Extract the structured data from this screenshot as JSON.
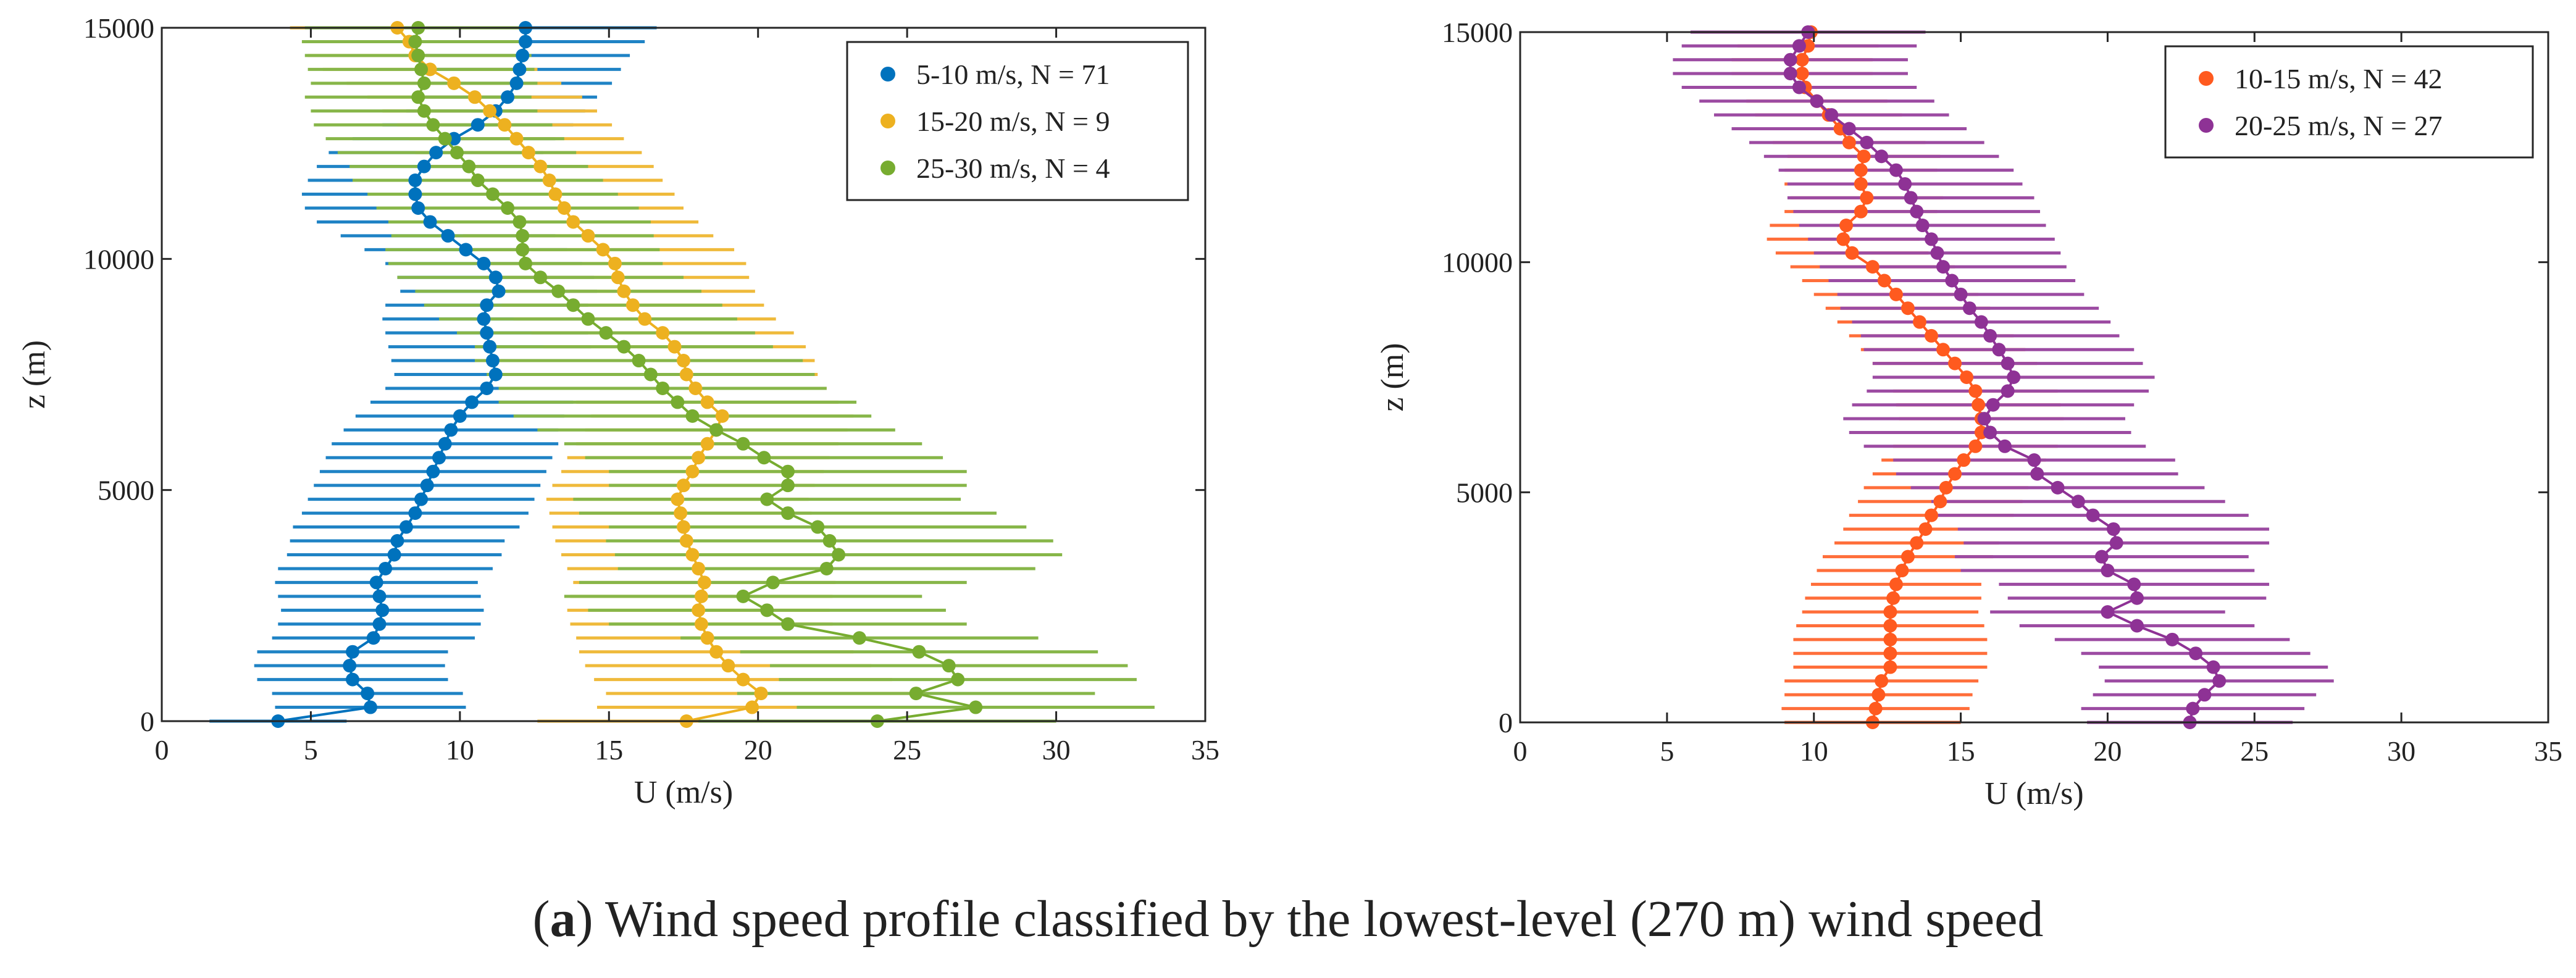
{
  "caption": {
    "prefix": "(",
    "letter": "a",
    "text": ") Wind speed profile classified by the lowest-level (270 m) wind speed"
  },
  "chart_data": [
    {
      "type": "scatter",
      "title": "",
      "xlabel": "U (m/s)",
      "ylabel": "z (m)",
      "xlim": [
        0,
        35
      ],
      "ylim": [
        0,
        15000
      ],
      "xticks": [
        0,
        5,
        10,
        15,
        20,
        25,
        30,
        35
      ],
      "yticks": [
        0,
        5000,
        10000,
        15000
      ],
      "legend_position": "top-right",
      "series": [
        {
          "name": "5-10 m/s, N = 71",
          "color": "#0072BD",
          "z": [
            0,
            300,
            600,
            900,
            1200,
            1500,
            1800,
            2100,
            2400,
            2700,
            3000,
            3300,
            3600,
            3900,
            4200,
            4500,
            4800,
            5100,
            5400,
            5700,
            6000,
            6300,
            6600,
            6900,
            7200,
            7500,
            7800,
            8100,
            8400,
            8700,
            9000,
            9300,
            9600,
            9900,
            10200,
            10500,
            10800,
            11100,
            11400,
            11700,
            12000,
            12300,
            12600,
            12900,
            13200,
            13500,
            13800,
            14100,
            14400,
            14700,
            15000
          ],
          "u": [
            3.9,
            7.0,
            6.9,
            6.4,
            6.3,
            6.4,
            7.1,
            7.3,
            7.4,
            7.3,
            7.2,
            7.5,
            7.8,
            7.9,
            8.2,
            8.5,
            8.7,
            8.9,
            9.1,
            9.3,
            9.5,
            9.7,
            10.0,
            10.4,
            10.9,
            11.2,
            11.1,
            11.0,
            10.9,
            10.8,
            10.9,
            11.3,
            11.2,
            10.8,
            10.2,
            9.6,
            9.0,
            8.6,
            8.5,
            8.5,
            8.8,
            9.2,
            9.8,
            10.6,
            11.2,
            11.6,
            11.9,
            12.0,
            12.1,
            12.2,
            12.2
          ],
          "spread": [
            2.3,
            3.2,
            3.2,
            3.2,
            3.2,
            3.2,
            3.4,
            3.4,
            3.4,
            3.4,
            3.4,
            3.6,
            3.6,
            3.6,
            3.8,
            3.8,
            3.8,
            3.8,
            3.8,
            3.8,
            3.8,
            3.6,
            3.5,
            3.4,
            3.4,
            3.4,
            3.4,
            3.4,
            3.4,
            3.4,
            3.4,
            3.3,
            3.3,
            3.3,
            3.4,
            3.6,
            3.8,
            3.8,
            3.8,
            3.6,
            3.6,
            3.6,
            3.4,
            3.2,
            3.0,
            3.0,
            3.2,
            3.4,
            3.6,
            4.0,
            4.4
          ]
        },
        {
          "name": "15-20 m/s, N = 9",
          "color": "#EDB120",
          "z": [
            0,
            300,
            600,
            900,
            1200,
            1500,
            1800,
            2100,
            2400,
            2700,
            3000,
            3300,
            3600,
            3900,
            4200,
            4500,
            4800,
            5100,
            5400,
            5700,
            6000,
            6300,
            6600,
            6900,
            7200,
            7500,
            7800,
            8100,
            8400,
            8700,
            9000,
            9300,
            9600,
            9900,
            10200,
            10500,
            10800,
            11100,
            11400,
            11700,
            12000,
            12300,
            12600,
            12900,
            13200,
            13500,
            13800,
            14100,
            14400,
            14700,
            15000
          ],
          "u": [
            17.6,
            19.8,
            20.1,
            19.5,
            19.0,
            18.6,
            18.3,
            18.1,
            18.0,
            18.1,
            18.2,
            18.0,
            17.8,
            17.6,
            17.5,
            17.4,
            17.3,
            17.5,
            17.8,
            18.0,
            18.3,
            18.6,
            18.8,
            18.3,
            17.9,
            17.6,
            17.5,
            17.2,
            16.8,
            16.2,
            15.8,
            15.5,
            15.3,
            15.2,
            14.8,
            14.3,
            13.8,
            13.5,
            13.2,
            13.0,
            12.7,
            12.3,
            11.9,
            11.5,
            11.0,
            10.5,
            9.8,
            9.0,
            8.5,
            8.3,
            7.9
          ],
          "spread": [
            5.0,
            5.2,
            5.2,
            5.0,
            4.8,
            4.6,
            4.4,
            4.4,
            4.4,
            4.4,
            4.4,
            4.4,
            4.4,
            4.4,
            4.4,
            4.4,
            4.4,
            4.4,
            4.4,
            4.4,
            4.4,
            4.4,
            4.4,
            4.4,
            4.4,
            4.4,
            4.4,
            4.4,
            4.4,
            4.4,
            4.4,
            4.4,
            4.4,
            4.4,
            4.4,
            4.2,
            4.2,
            4.0,
            4.0,
            3.8,
            3.8,
            3.8,
            3.6,
            3.6,
            3.6,
            3.6,
            3.6,
            3.6,
            3.6,
            3.6,
            3.6
          ]
        },
        {
          "name": "25-30 m/s, N = 4",
          "color": "#77AC30",
          "z": [
            0,
            300,
            600,
            900,
            1200,
            1500,
            1800,
            2100,
            2400,
            2700,
            3000,
            3300,
            3600,
            3900,
            4200,
            4500,
            4800,
            5100,
            5400,
            5700,
            6000,
            6300,
            6600,
            6900,
            7200,
            7500,
            7800,
            8100,
            8400,
            8700,
            9000,
            9300,
            9600,
            9900,
            10200,
            10500,
            10800,
            11100,
            11400,
            11700,
            12000,
            12300,
            12600,
            12900,
            13200,
            13500,
            13800,
            14100,
            14400,
            14700,
            15000
          ],
          "u": [
            24.0,
            27.3,
            25.3,
            26.7,
            26.4,
            25.4,
            23.4,
            21.0,
            20.3,
            19.5,
            20.5,
            22.3,
            22.7,
            22.4,
            22.0,
            21.0,
            20.3,
            21.0,
            21.0,
            20.2,
            19.5,
            18.6,
            17.8,
            17.3,
            16.8,
            16.4,
            16.0,
            15.5,
            14.9,
            14.3,
            13.8,
            13.3,
            12.7,
            12.2,
            12.1,
            12.1,
            12.0,
            11.6,
            11.1,
            10.6,
            10.3,
            9.9,
            9.5,
            9.1,
            8.8,
            8.6,
            8.8,
            8.7,
            8.6,
            8.5,
            8.6
          ],
          "spread": [
            6.0,
            6.0,
            6.0,
            6.0,
            6.0,
            6.0,
            6.0,
            6.0,
            6.0,
            6.0,
            6.5,
            7.0,
            7.5,
            7.5,
            7.0,
            7.0,
            6.5,
            6.0,
            6.0,
            6.0,
            6.0,
            6.0,
            6.0,
            6.0,
            5.5,
            5.5,
            5.5,
            5.0,
            5.0,
            5.0,
            5.0,
            4.8,
            4.8,
            4.6,
            4.6,
            4.4,
            4.4,
            4.4,
            4.2,
            4.2,
            4.0,
            4.0,
            4.0,
            4.0,
            3.8,
            3.8,
            3.8,
            3.8,
            3.8,
            3.8,
            3.8
          ]
        }
      ]
    },
    {
      "type": "scatter",
      "title": "",
      "xlabel": "U (m/s)",
      "ylabel": "z (m)",
      "xlim": [
        0,
        35
      ],
      "ylim": [
        0,
        15000
      ],
      "xticks": [
        0,
        5,
        10,
        15,
        20,
        25,
        30,
        35
      ],
      "yticks": [
        0,
        5000,
        10000,
        15000
      ],
      "legend_position": "top-right",
      "series": [
        {
          "name": "10-15 m/s, N = 42",
          "color": "#FF5A1F",
          "z": [
            0,
            300,
            600,
            900,
            1200,
            1500,
            1800,
            2100,
            2400,
            2700,
            3000,
            3300,
            3600,
            3900,
            4200,
            4500,
            4800,
            5100,
            5400,
            5700,
            6000,
            6300,
            6600,
            6900,
            7200,
            7500,
            7800,
            8100,
            8400,
            8700,
            9000,
            9300,
            9600,
            9900,
            10200,
            10500,
            10800,
            11100,
            11400,
            11700,
            12000,
            12300,
            12600,
            12900,
            13200,
            13500,
            13800,
            14100,
            14400,
            14700,
            15000
          ],
          "u": [
            12.0,
            12.1,
            12.2,
            12.3,
            12.6,
            12.6,
            12.6,
            12.6,
            12.6,
            12.7,
            12.8,
            13.0,
            13.2,
            13.5,
            13.8,
            14.0,
            14.3,
            14.5,
            14.8,
            15.1,
            15.5,
            15.7,
            15.7,
            15.6,
            15.5,
            15.2,
            14.8,
            14.4,
            14.0,
            13.6,
            13.2,
            12.8,
            12.4,
            12.0,
            11.3,
            11.0,
            11.1,
            11.6,
            11.8,
            11.6,
            11.6,
            11.7,
            11.2,
            10.9,
            10.5,
            10.1,
            9.7,
            9.6,
            9.6,
            9.8,
            9.9
          ],
          "spread": [
            3.0,
            3.2,
            3.2,
            3.3,
            3.3,
            3.3,
            3.3,
            3.2,
            3.0,
            3.0,
            2.9,
            2.9,
            2.9,
            2.8,
            2.8,
            2.8,
            2.8,
            2.8,
            2.8,
            2.8,
            2.8,
            2.8,
            2.8,
            2.8,
            2.8,
            2.8,
            2.8,
            2.8,
            2.8,
            2.8,
            2.8,
            2.8,
            2.8,
            2.8,
            2.6,
            2.6,
            2.6,
            2.6,
            2.6,
            2.6,
            2.6,
            2.6,
            2.6,
            2.5,
            2.5,
            2.4,
            2.4,
            2.4,
            2.4,
            2.4,
            2.4
          ]
        },
        {
          "name": "20-25 m/s, N = 27",
          "color": "#8E3295",
          "z": [
            0,
            300,
            600,
            900,
            1200,
            1500,
            1800,
            2100,
            2400,
            2700,
            3000,
            3300,
            3600,
            3900,
            4200,
            4500,
            4800,
            5100,
            5400,
            5700,
            6000,
            6300,
            6600,
            6900,
            7200,
            7500,
            7800,
            8100,
            8400,
            8700,
            9000,
            9300,
            9600,
            9900,
            10200,
            10500,
            10800,
            11100,
            11400,
            11700,
            12000,
            12300,
            12600,
            12900,
            13200,
            13500,
            13800,
            14100,
            14400,
            14700,
            15000
          ],
          "u": [
            22.8,
            22.9,
            23.3,
            23.8,
            23.6,
            23.0,
            22.2,
            21.0,
            20.0,
            21.0,
            20.9,
            20.0,
            19.8,
            20.3,
            20.2,
            19.5,
            19.0,
            18.3,
            17.6,
            17.5,
            16.5,
            16.0,
            15.8,
            16.1,
            16.6,
            16.8,
            16.6,
            16.3,
            16.0,
            15.7,
            15.3,
            15.0,
            14.7,
            14.4,
            14.2,
            14.0,
            13.7,
            13.5,
            13.3,
            13.1,
            12.8,
            12.3,
            11.8,
            11.2,
            10.6,
            10.1,
            9.5,
            9.2,
            9.2,
            9.5,
            9.8
          ],
          "spread": [
            3.5,
            3.8,
            3.8,
            3.9,
            3.9,
            3.9,
            4.0,
            4.0,
            4.0,
            4.4,
            4.6,
            5.0,
            5.0,
            5.2,
            5.3,
            5.3,
            5.0,
            5.0,
            4.8,
            4.8,
            4.8,
            4.8,
            4.8,
            4.8,
            4.8,
            4.8,
            4.6,
            4.6,
            4.4,
            4.4,
            4.4,
            4.2,
            4.2,
            4.2,
            4.2,
            4.2,
            4.2,
            4.2,
            4.2,
            4.0,
            4.0,
            4.0,
            4.0,
            4.0,
            4.0,
            4.0,
            4.0,
            4.0,
            4.0,
            4.0,
            4.0
          ]
        }
      ]
    }
  ]
}
